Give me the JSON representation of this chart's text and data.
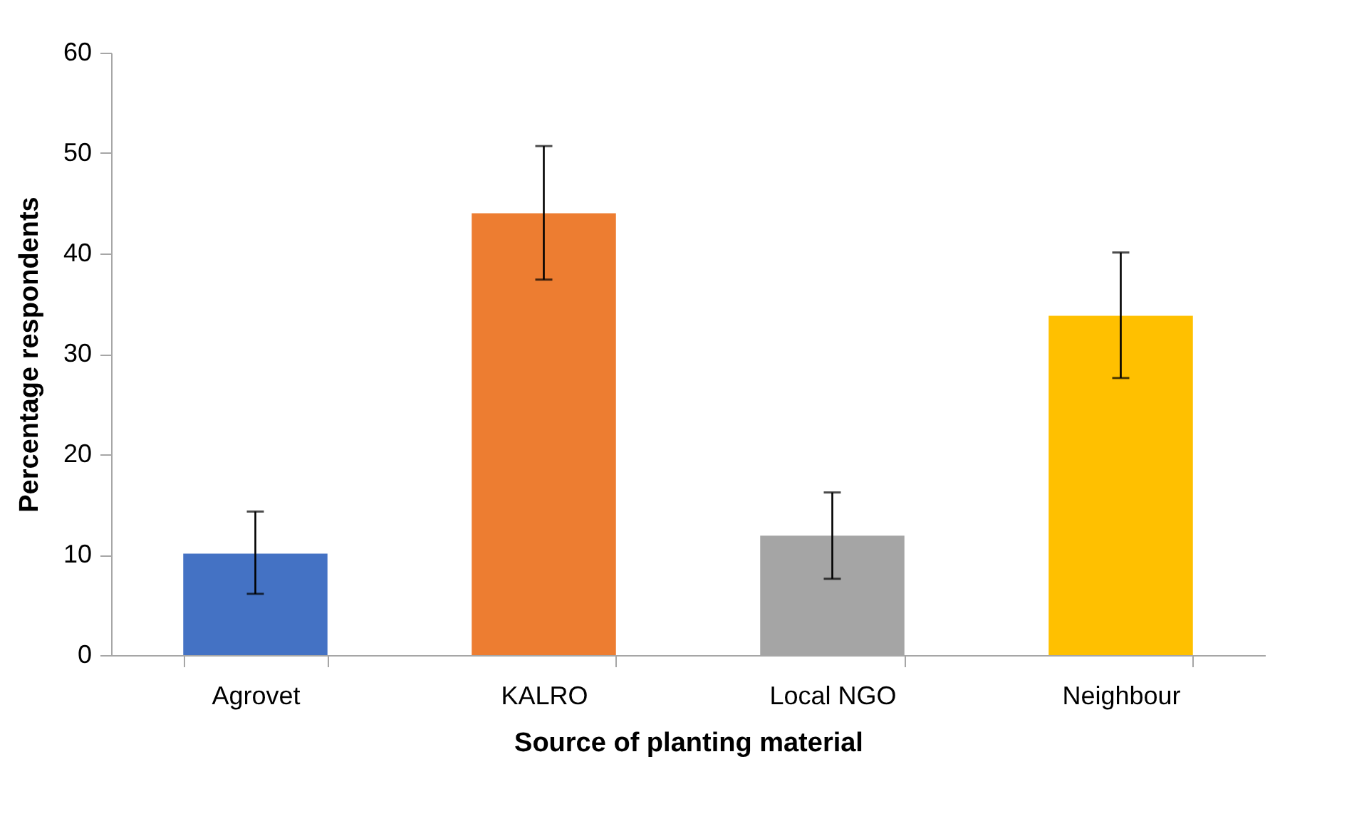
{
  "chart_data": {
    "type": "bar",
    "xlabel": "Source of planting material",
    "ylabel": "Percentage respondents",
    "categories": [
      "Agrovet",
      "KALRO",
      "Local NGO",
      "Neighbour"
    ],
    "values": [
      10.1,
      44.0,
      11.9,
      33.8
    ],
    "colors": [
      "#4472c4",
      "#ed7d31",
      "#a5a5a5",
      "#ffc000"
    ],
    "errors": [
      [
        6.1,
        14.3
      ],
      [
        37.4,
        50.7
      ],
      [
        7.6,
        16.2
      ],
      [
        27.6,
        40.1
      ]
    ],
    "ylim": [
      0,
      60
    ],
    "yticks": [
      0,
      10,
      20,
      30,
      40,
      50,
      60
    ],
    "grid": false
  }
}
